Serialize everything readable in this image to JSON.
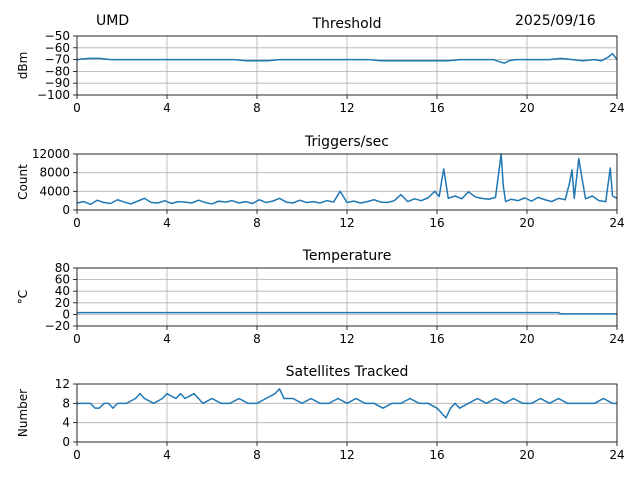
{
  "header": {
    "station": "UMD",
    "date": "2025/09/16"
  },
  "chart_data": [
    {
      "type": "line",
      "title": "Threshold",
      "xlabel": "",
      "ylabel": "dBm",
      "xlim": [
        0,
        24
      ],
      "ylim": [
        -100,
        -50
      ],
      "xticks": [
        0,
        4,
        8,
        12,
        16,
        20,
        24
      ],
      "yticks": [
        -100,
        -90,
        -80,
        -70,
        -60,
        -50
      ],
      "ytick_labels": [
        "−100",
        "−90",
        "−80",
        "−70",
        "−60",
        "−50"
      ],
      "grid": true,
      "color": "#1f77b4",
      "series": [
        {
          "x": [
            0,
            0.5,
            1,
            1.5,
            2,
            2.5,
            3,
            3.5,
            4,
            4.5,
            5,
            5.5,
            6,
            6.5,
            7,
            7.5,
            8,
            8.5,
            9,
            9.5,
            10,
            10.5,
            11,
            11.5,
            12,
            12.5,
            13,
            13.5,
            14,
            14.5,
            15,
            15.5,
            16,
            16.5,
            17,
            17.5,
            18,
            18.5,
            18.8,
            19,
            19.2,
            19.5,
            20,
            20.5,
            21,
            21.5,
            22,
            22.5,
            23,
            23.3,
            23.6,
            23.8,
            24
          ],
          "values": [
            -70,
            -69,
            -69,
            -70,
            -70,
            -70,
            -70,
            -70,
            -70,
            -70,
            -70,
            -70,
            -70,
            -70,
            -70,
            -71,
            -71,
            -71,
            -70,
            -70,
            -70,
            -70,
            -70,
            -70,
            -70,
            -70,
            -70,
            -71,
            -71,
            -71,
            -71,
            -71,
            -71,
            -71,
            -70,
            -70,
            -70,
            -70,
            -72,
            -73,
            -71,
            -70,
            -70,
            -70,
            -70,
            -69,
            -70,
            -71,
            -70,
            -71,
            -68,
            -65,
            -70
          ]
        }
      ]
    },
    {
      "type": "line",
      "title": "Triggers/sec",
      "xlabel": "",
      "ylabel": "Count",
      "xlim": [
        0,
        24
      ],
      "ylim": [
        0,
        12000
      ],
      "xticks": [
        0,
        4,
        8,
        12,
        16,
        20,
        24
      ],
      "yticks": [
        0,
        4000,
        8000,
        12000
      ],
      "ytick_labels": [
        "0",
        "4000",
        "8000",
        "12000"
      ],
      "grid": true,
      "color": "#1f77b4",
      "series": [
        {
          "x": [
            0,
            0.3,
            0.6,
            0.9,
            1.2,
            1.5,
            1.8,
            2.1,
            2.4,
            2.7,
            3,
            3.3,
            3.6,
            3.9,
            4.2,
            4.5,
            4.8,
            5.1,
            5.4,
            5.7,
            6,
            6.3,
            6.6,
            6.9,
            7.2,
            7.5,
            7.8,
            8.1,
            8.4,
            8.7,
            9,
            9.3,
            9.6,
            9.9,
            10.2,
            10.5,
            10.8,
            11.1,
            11.4,
            11.7,
            12,
            12.3,
            12.6,
            12.9,
            13.2,
            13.5,
            13.8,
            14.1,
            14.4,
            14.7,
            15,
            15.3,
            15.6,
            15.9,
            16.1,
            16.2,
            16.3,
            16.5,
            16.8,
            17.1,
            17.4,
            17.7,
            18,
            18.3,
            18.6,
            18.85,
            18.95,
            19.05,
            19.3,
            19.6,
            19.9,
            20.2,
            20.5,
            20.8,
            21.1,
            21.4,
            21.7,
            21.9,
            22,
            22.1,
            22.3,
            22.6,
            22.9,
            23.2,
            23.5,
            23.7,
            23.8,
            24
          ],
          "values": [
            1500,
            1800,
            1200,
            2100,
            1600,
            1400,
            2200,
            1700,
            1300,
            1900,
            2500,
            1600,
            1500,
            2000,
            1400,
            1800,
            1700,
            1500,
            2100,
            1600,
            1300,
            1900,
            1700,
            2000,
            1500,
            1800,
            1400,
            2200,
            1600,
            1900,
            2500,
            1700,
            1500,
            2100,
            1600,
            1800,
            1500,
            2000,
            1700,
            4000,
            1600,
            1900,
            1500,
            1800,
            2200,
            1700,
            1600,
            2000,
            3300,
            1800,
            2400,
            2000,
            2600,
            4000,
            2900,
            6000,
            8800,
            2500,
            3000,
            2400,
            3900,
            2800,
            2500,
            2300,
            2700,
            12000,
            5000,
            1800,
            2300,
            2000,
            2600,
            1900,
            2700,
            2200,
            1800,
            2500,
            2200,
            6000,
            8600,
            2500,
            11000,
            2400,
            3000,
            2000,
            1800,
            9000,
            3000,
            2500
          ]
        }
      ]
    },
    {
      "type": "line",
      "title": "Temperature",
      "xlabel": "",
      "ylabel": "°C",
      "xlim": [
        0,
        24
      ],
      "ylim": [
        -20,
        80
      ],
      "xticks": [
        0,
        4,
        8,
        12,
        16,
        20,
        24
      ],
      "yticks": [
        -20,
        0,
        20,
        40,
        60,
        80
      ],
      "ytick_labels": [
        "−20",
        "0",
        "20",
        "40",
        "60",
        "80"
      ],
      "grid": true,
      "color": "#1f77b4",
      "series": [
        {
          "x": [
            0,
            21.4,
            21.5,
            24
          ],
          "values": [
            3,
            3,
            1,
            1
          ]
        }
      ]
    },
    {
      "type": "line",
      "title": "Satellites Tracked",
      "xlabel": "",
      "ylabel": "Number",
      "xlim": [
        0,
        24
      ],
      "ylim": [
        0,
        12
      ],
      "xticks": [
        0,
        4,
        8,
        12,
        16,
        20,
        24
      ],
      "yticks": [
        0,
        4,
        8,
        12
      ],
      "ytick_labels": [
        "0",
        "4",
        "8",
        "12"
      ],
      "grid": true,
      "color": "#1f77b4",
      "series": [
        {
          "x": [
            0,
            0.6,
            0.8,
            1.0,
            1.2,
            1.4,
            1.6,
            1.8,
            2.0,
            2.2,
            2.6,
            2.8,
            3.0,
            3.4,
            3.8,
            4.0,
            4.4,
            4.6,
            4.8,
            5.2,
            5.6,
            6.0,
            6.4,
            6.8,
            7.2,
            7.6,
            8.0,
            8.4,
            8.8,
            9.0,
            9.2,
            9.6,
            10.0,
            10.4,
            10.8,
            11.2,
            11.6,
            12.0,
            12.4,
            12.8,
            13.2,
            13.6,
            14.0,
            14.4,
            14.8,
            15.2,
            15.6,
            16.0,
            16.2,
            16.4,
            16.6,
            16.8,
            17.0,
            17.4,
            17.8,
            18.2,
            18.6,
            19.0,
            19.4,
            19.8,
            20.2,
            20.6,
            21.0,
            21.4,
            21.8,
            22.2,
            22.6,
            23.0,
            23.4,
            23.8,
            24
          ],
          "values": [
            8,
            8,
            7,
            7,
            8,
            8,
            7,
            8,
            8,
            8,
            9,
            10,
            9,
            8,
            9,
            10,
            9,
            10,
            9,
            10,
            8,
            9,
            8,
            8,
            9,
            8,
            8,
            9,
            10,
            11,
            9,
            9,
            8,
            9,
            8,
            8,
            9,
            8,
            9,
            8,
            8,
            7,
            8,
            8,
            9,
            8,
            8,
            7,
            6,
            5,
            7,
            8,
            7,
            8,
            9,
            8,
            9,
            8,
            9,
            8,
            8,
            9,
            8,
            9,
            8,
            8,
            8,
            8,
            9,
            8,
            8
          ]
        }
      ]
    }
  ]
}
